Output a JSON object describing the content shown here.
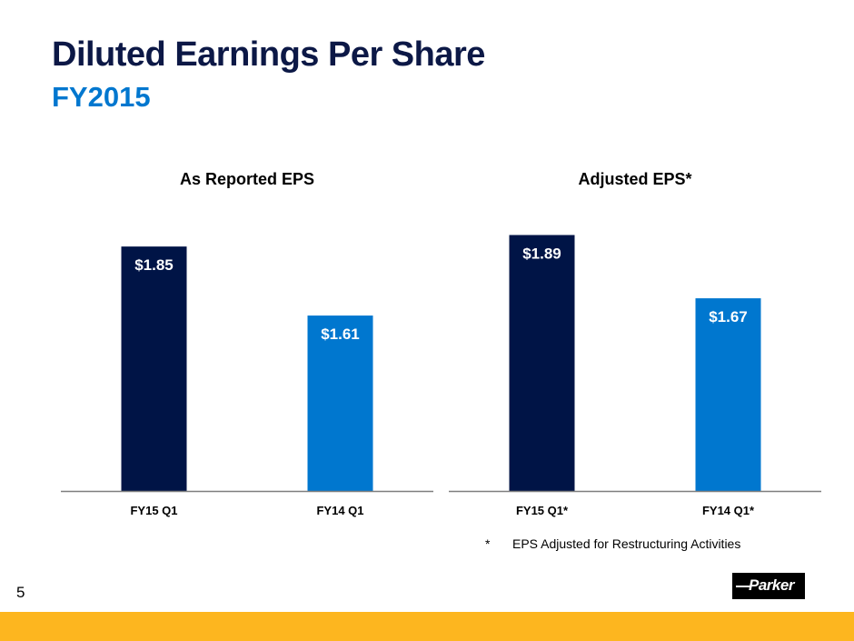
{
  "header": {
    "title": "Diluted Earnings Per Share",
    "subtitle": "FY2015"
  },
  "colors": {
    "title": "#0c1846",
    "subtitle": "#0077cf",
    "current_year_bar": "#001446",
    "prior_year_bar": "#0077cf",
    "footer_band": "#fdb61f"
  },
  "chart_data": [
    {
      "type": "bar",
      "title": "As Reported EPS",
      "categories": [
        "FY15 Q1",
        "FY14 Q1"
      ],
      "values": [
        1.85,
        1.61
      ],
      "data_labels": [
        "$1.85",
        "$1.61"
      ],
      "bar_colors": [
        "#001446",
        "#0077cf"
      ],
      "xlabel": "",
      "ylabel": "",
      "ylim": [
        1.0,
        1.92
      ],
      "grid": false,
      "legend": "none"
    },
    {
      "type": "bar",
      "title": "Adjusted EPS*",
      "categories": [
        "FY15 Q1*",
        "FY14 Q1*"
      ],
      "values": [
        1.89,
        1.67
      ],
      "data_labels": [
        "$1.89",
        "$1.67"
      ],
      "bar_colors": [
        "#001446",
        "#0077cf"
      ],
      "xlabel": "",
      "ylabel": "",
      "ylim": [
        1.0,
        1.92
      ],
      "grid": false,
      "legend": "none"
    }
  ],
  "footnote": {
    "marker": "*",
    "text": "EPS Adjusted for Restructuring Activities"
  },
  "page_number": "5",
  "logo": {
    "text": "Parker"
  }
}
